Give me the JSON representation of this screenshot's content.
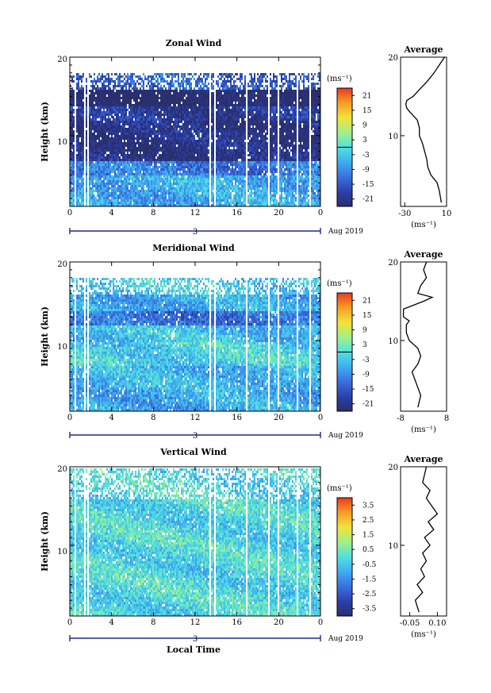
{
  "figure": {
    "x_axis_title": "Local Time",
    "date_label": "Aug 2019",
    "day_label": "3"
  },
  "chart_data": [
    {
      "type": "heatmap",
      "title": "Zonal Wind",
      "ylabel": "Height (km)",
      "x": {
        "ticks": [
          "0",
          "4",
          "8",
          "12",
          "16",
          "20",
          "0"
        ],
        "range": [
          0,
          24
        ]
      },
      "y": {
        "ticks": [
          "10",
          "20"
        ],
        "range": [
          1,
          20
        ]
      },
      "colorbar": {
        "unit": "(ms⁻¹)",
        "range": [
          -24,
          24
        ],
        "ticks": [
          "21",
          "15",
          "9",
          "3",
          "-3",
          "-9",
          "-15",
          "-21"
        ],
        "zero_line": true
      },
      "layers_ms": [
        {
          "height_km": [
            1,
            5
          ],
          "value": -6
        },
        {
          "height_km": [
            5,
            7
          ],
          "value": -11
        },
        {
          "height_km": [
            7,
            12
          ],
          "value": -22
        },
        {
          "height_km": [
            12,
            14
          ],
          "value": -20
        },
        {
          "height_km": [
            14,
            16
          ],
          "value": -26
        },
        {
          "height_km": [
            16,
            18
          ],
          "value": -14
        }
      ],
      "average_profile": {
        "title": "Average",
        "xlabel": "(ms⁻¹)",
        "x_range": [
          -34,
          10
        ],
        "x_ticks": [
          "-30",
          "10"
        ],
        "y_ticks": [
          "10",
          "20"
        ],
        "height_km": [
          1.5,
          3,
          4,
          5,
          6,
          7,
          8,
          9,
          10,
          11,
          12,
          13,
          13.5,
          14,
          14.5,
          15,
          16,
          17,
          18,
          19,
          20
        ],
        "values": [
          5,
          3,
          1,
          -5,
          -8,
          -9,
          -11,
          -13,
          -16,
          -16,
          -18,
          -25,
          -28,
          -29,
          -28,
          -22,
          -15,
          -8,
          -2,
          3,
          8
        ]
      }
    },
    {
      "type": "heatmap",
      "title": "Meridional Wind",
      "ylabel": "Height (km)",
      "x": {
        "ticks": [
          "0",
          "4",
          "8",
          "12",
          "16",
          "20",
          "0"
        ],
        "range": [
          0,
          24
        ]
      },
      "y": {
        "ticks": [
          "10",
          "20"
        ],
        "range": [
          1,
          20
        ]
      },
      "colorbar": {
        "unit": "(ms⁻¹)",
        "range": [
          -24,
          24
        ],
        "ticks": [
          "21",
          "15",
          "9",
          "3",
          "-3",
          "-9",
          "-15",
          "-21"
        ],
        "zero_line": true
      },
      "layers_ms": [
        {
          "height_km": [
            1,
            4
          ],
          "value": -6
        },
        {
          "height_km": [
            4,
            7
          ],
          "value": -5
        },
        {
          "height_km": [
            7,
            10
          ],
          "value": -2
        },
        {
          "height_km": [
            10,
            12
          ],
          "value": -4
        },
        {
          "height_km": [
            12,
            14
          ],
          "value": -12
        },
        {
          "height_km": [
            14,
            16
          ],
          "value": -6
        },
        {
          "height_km": [
            16,
            18
          ],
          "value": -3
        }
      ],
      "average_profile": {
        "title": "Average",
        "xlabel": "(ms⁻¹)",
        "x_range": [
          -8,
          8
        ],
        "x_ticks": [
          "-8",
          "8"
        ],
        "y_ticks": [
          "10",
          "20"
        ],
        "height_km": [
          1.5,
          3,
          4,
          5,
          6,
          7,
          8,
          9,
          10,
          11,
          12,
          12.5,
          13,
          14,
          15,
          15.5,
          16,
          17,
          18,
          19,
          20
        ],
        "values": [
          -2,
          -1,
          -2,
          -3,
          -4,
          -2,
          -1,
          -2,
          -5,
          -6,
          -6,
          -5,
          -7,
          -7,
          0,
          3,
          -2,
          -1,
          1,
          0,
          1
        ]
      }
    },
    {
      "type": "heatmap",
      "title": "Vertical Wind",
      "ylabel": "Height (km)",
      "x": {
        "ticks": [
          "0",
          "4",
          "8",
          "12",
          "16",
          "20",
          "0"
        ],
        "range": [
          0,
          24
        ]
      },
      "y": {
        "ticks": [
          "10",
          "20"
        ],
        "range": [
          1,
          20
        ]
      },
      "colorbar": {
        "unit": "(ms⁻¹)",
        "range": [
          -4,
          4
        ],
        "ticks": [
          "3.5",
          "2.5",
          "1.5",
          "0.5",
          "-0.5",
          "-1.5",
          "-2.5",
          "-3.5"
        ],
        "zero_line": false
      },
      "layers_ms": [
        {
          "height_km": [
            1,
            20
          ],
          "value": -0.2
        }
      ],
      "average_profile": {
        "title": "Average",
        "xlabel": "(ms⁻¹)",
        "x_range": [
          -0.1,
          0.15
        ],
        "x_ticks": [
          "-0.05",
          "0.10"
        ],
        "y_ticks": [
          "10",
          "20"
        ],
        "height_km": [
          1.5,
          3,
          4,
          5,
          6,
          7,
          8,
          9,
          10,
          11,
          12,
          13,
          14,
          15,
          16,
          17,
          18,
          19,
          20
        ],
        "values": [
          0.0,
          -0.02,
          0.02,
          -0.01,
          0.03,
          0.01,
          0.04,
          0.02,
          0.06,
          0.03,
          0.08,
          0.05,
          0.1,
          0.07,
          0.04,
          0.06,
          0.02,
          0.03,
          0.04
        ]
      }
    }
  ]
}
